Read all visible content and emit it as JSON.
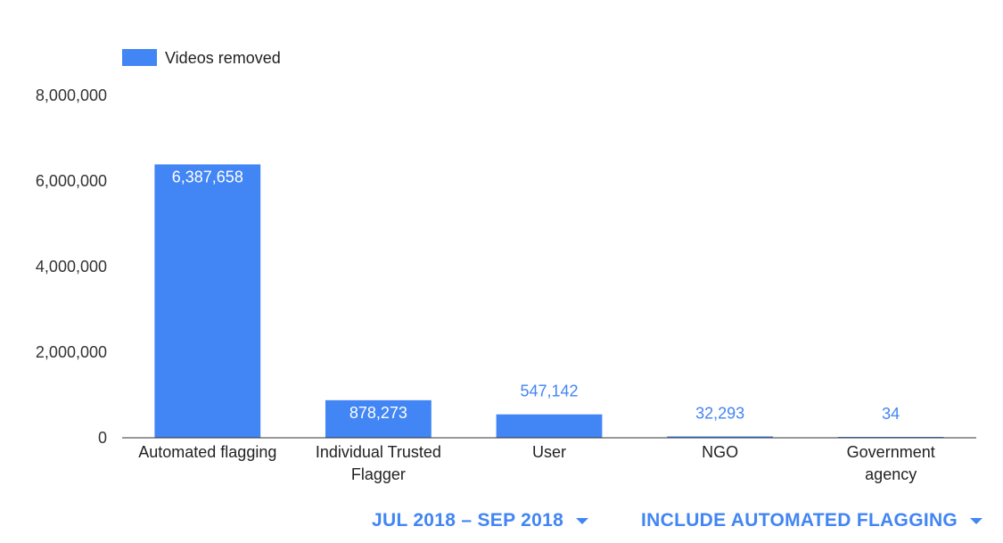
{
  "chart_data": {
    "type": "bar",
    "categories": [
      "Automated flagging",
      "Individual Trusted Flagger",
      "User",
      "NGO",
      "Government agency"
    ],
    "category_lines": [
      [
        "Automated flagging"
      ],
      [
        "Individual Trusted",
        "Flagger"
      ],
      [
        "User"
      ],
      [
        "NGO"
      ],
      [
        "Government",
        "agency"
      ]
    ],
    "series": [
      {
        "name": "Videos removed",
        "values": [
          6387658,
          878273,
          547142,
          32293,
          34
        ]
      }
    ],
    "data_labels": [
      "6,387,658",
      "878,273",
      "547,142",
      "32,293",
      "34"
    ],
    "yticks": [
      0,
      2000000,
      4000000,
      6000000,
      8000000
    ],
    "ytick_labels": [
      "0",
      "2,000,000",
      "4,000,000",
      "6,000,000",
      "8,000,000"
    ],
    "ylim": [
      0,
      8000000
    ],
    "legend_position": "top-left",
    "bar_color": "#4285f4",
    "grid": false
  },
  "controls": {
    "period_label": "JUL 2018 – SEP 2018",
    "flagging_label": "INCLUDE AUTOMATED FLAGGING"
  }
}
